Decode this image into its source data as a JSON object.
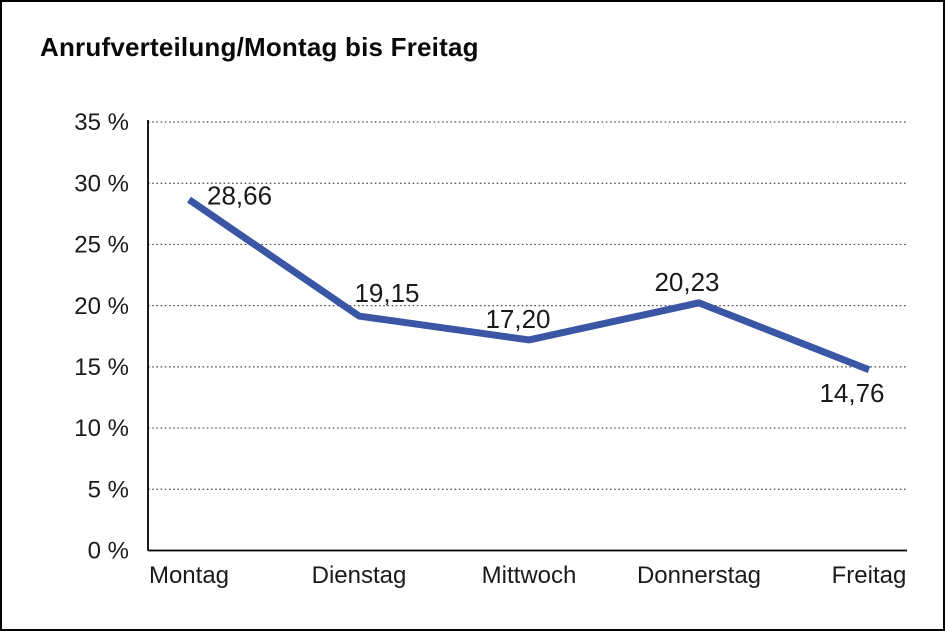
{
  "page": {
    "background_color": "#ffffff",
    "frame_border_color": "#000000"
  },
  "chart_data": {
    "type": "line",
    "title": "Anrufverteilung/Montag bis Freitag",
    "categories": [
      "Montag",
      "Dienstag",
      "Mittwoch",
      "Donnerstag",
      "Freitag"
    ],
    "series": [
      {
        "name": "Anrufverteilung",
        "values": [
          28.66,
          19.15,
          17.2,
          20.23,
          14.76
        ],
        "point_labels": [
          "28,66",
          "19,15",
          "17,20",
          "20,23",
          "14,76"
        ],
        "color": "#3A56A4"
      }
    ],
    "xlabel": "",
    "ylabel": "",
    "ylim": [
      0,
      35
    ],
    "y_tick_step": 5,
    "y_tick_labels": [
      "35 %",
      "30 %",
      "25 %",
      "20 %",
      "15 %",
      "10 %",
      "5 %",
      "0 %"
    ],
    "grid": "horizontal-dotted",
    "grid_color": "#4a4a4a",
    "axis_color": "#000000",
    "text_color": "#1a1a1a",
    "legend": "none"
  }
}
